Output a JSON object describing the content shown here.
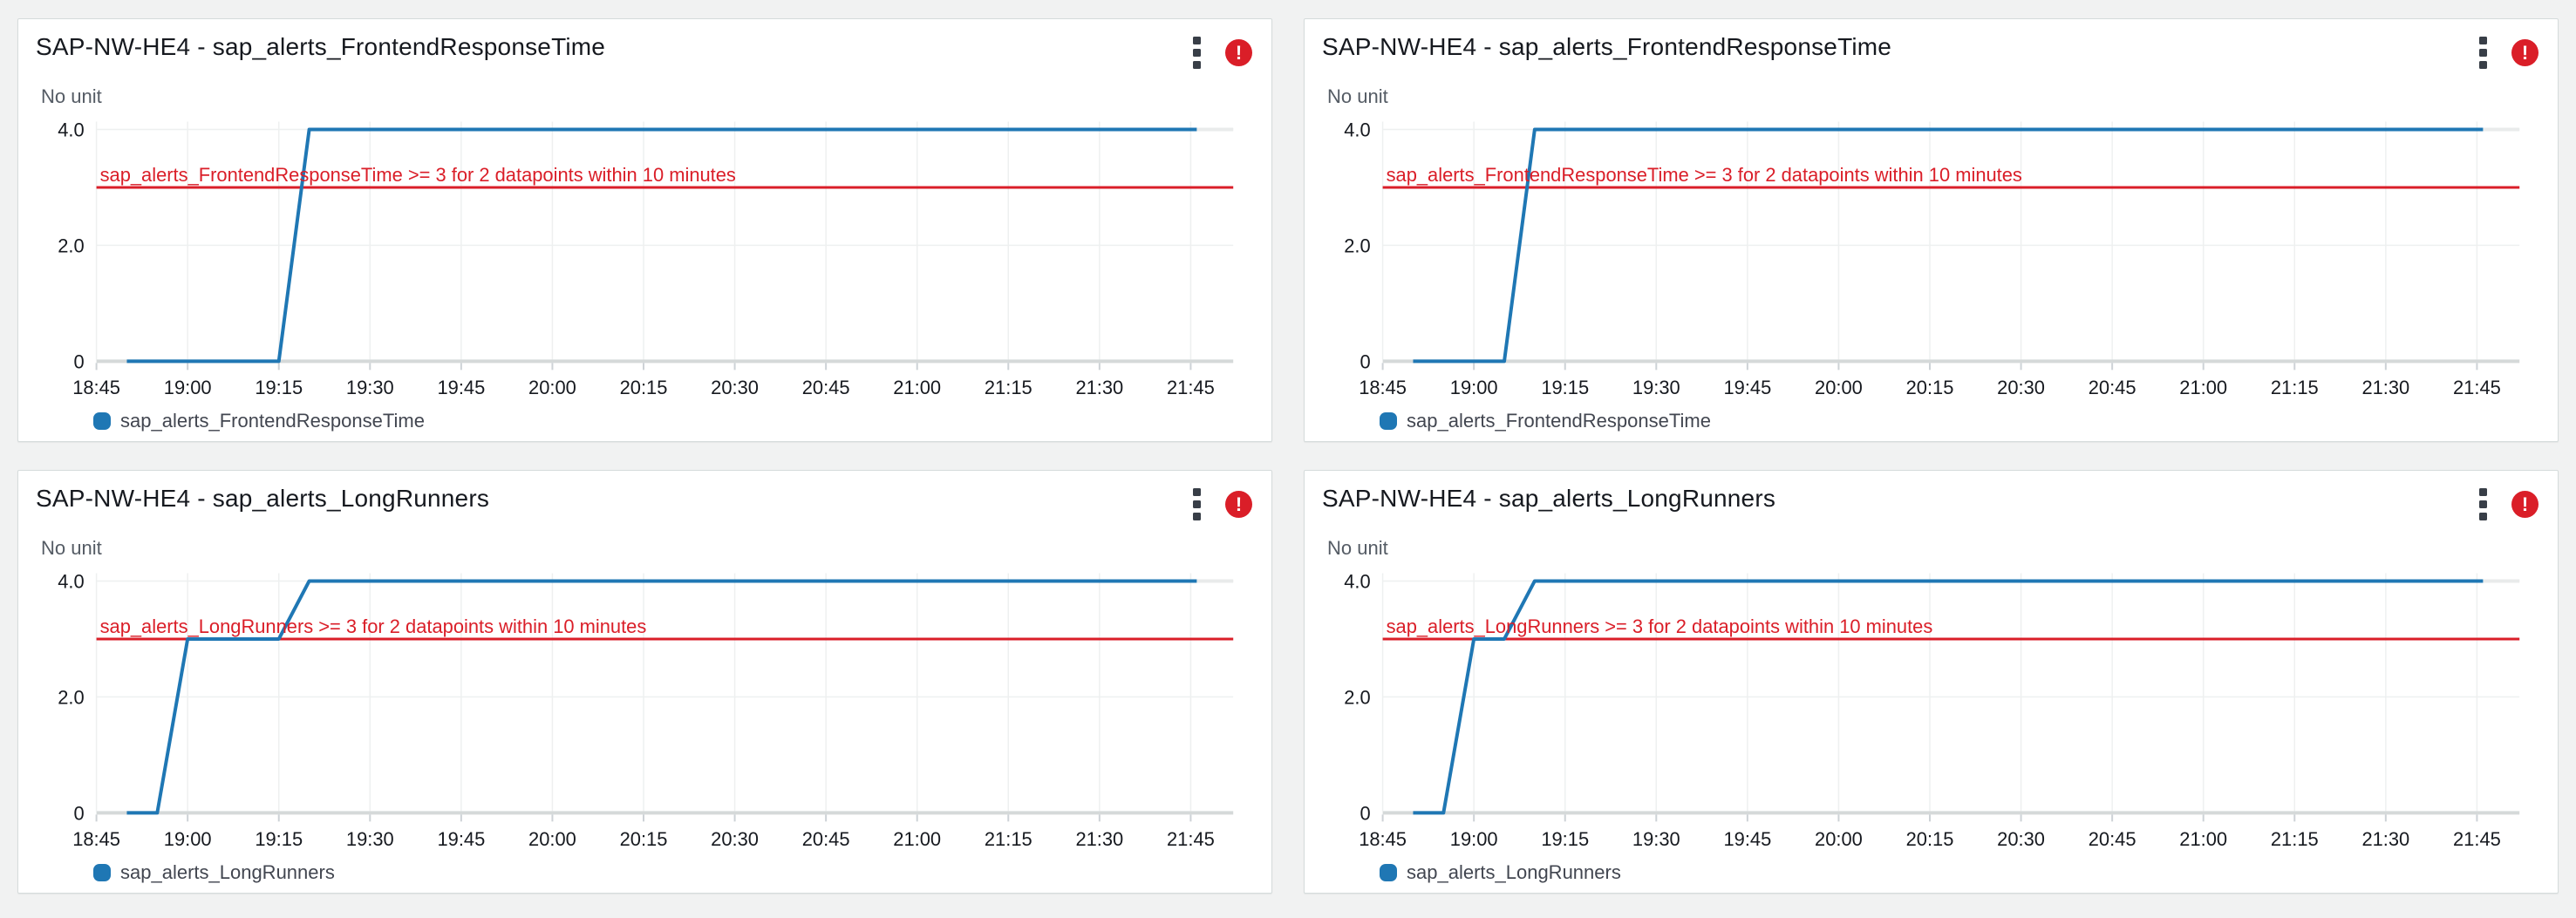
{
  "colors": {
    "page_background": "#f1f2f2",
    "widget_background": "#ffffff",
    "widget_border": "#d5dbdb",
    "series_blue": "#1f77b4",
    "threshold_red": "#da1e28",
    "alarm_badge_red": "#da1e28",
    "axis_baseline": "#d5d9d9",
    "gridline": "#eef0f0",
    "tick_mark": "#cdd2d6",
    "no_data_tail": "#e9ebeb",
    "title_text": "#16191f",
    "axis_text": "#16191f",
    "muted_text": "#545b64"
  },
  "widgets": [
    {
      "title": "SAP-NW-HE4 - sap_alerts_FrontendResponseTime",
      "unit_label": "No unit",
      "alarm_glyph": "!",
      "menu_icon": "kebab-menu",
      "alarm_icon": "alarm-in-alarm",
      "legend": {
        "label": "sap_alerts_FrontendResponseTime",
        "color": "#1f77b4"
      },
      "chart_data": {
        "type": "line",
        "title": "SAP-NW-HE4 - sap_alerts_FrontendResponseTime",
        "x_ticks": [
          "18:45",
          "19:00",
          "19:15",
          "19:30",
          "19:45",
          "20:00",
          "20:15",
          "20:30",
          "20:45",
          "21:00",
          "21:15",
          "21:30",
          "21:45"
        ],
        "x_range": [
          "18:45",
          "21:52"
        ],
        "y_ticks": [
          [
            0,
            "0"
          ],
          [
            2,
            "2.0"
          ],
          [
            4,
            "4.0"
          ]
        ],
        "ylim": [
          0,
          4
        ],
        "grid": true,
        "legend_position": "bottom",
        "threshold": {
          "value": 3,
          "label": "sap_alerts_FrontendResponseTime >= 3 for 2 datapoints within 10 minutes"
        },
        "series": [
          {
            "name": "sap_alerts_FrontendResponseTime",
            "color": "#1f77b4",
            "points": [
              [
                "18:50",
                0
              ],
              [
                "19:15",
                0
              ],
              [
                "19:20",
                4
              ],
              [
                "21:46",
                4
              ]
            ]
          }
        ],
        "no_data_tail": {
          "points": [
            [
              "21:46",
              4
            ],
            [
              "21:52",
              4
            ]
          ]
        }
      }
    },
    {
      "title": "SAP-NW-HE4 - sap_alerts_FrontendResponseTime",
      "unit_label": "No unit",
      "alarm_glyph": "!",
      "menu_icon": "kebab-menu",
      "alarm_icon": "alarm-in-alarm",
      "legend": {
        "label": "sap_alerts_FrontendResponseTime",
        "color": "#1f77b4"
      },
      "chart_data": {
        "type": "line",
        "title": "SAP-NW-HE4 - sap_alerts_FrontendResponseTime",
        "x_ticks": [
          "18:45",
          "19:00",
          "19:15",
          "19:30",
          "19:45",
          "20:00",
          "20:15",
          "20:30",
          "20:45",
          "21:00",
          "21:15",
          "21:30",
          "21:45"
        ],
        "x_range": [
          "18:45",
          "21:52"
        ],
        "y_ticks": [
          [
            0,
            "0"
          ],
          [
            2,
            "2.0"
          ],
          [
            4,
            "4.0"
          ]
        ],
        "ylim": [
          0,
          4
        ],
        "grid": true,
        "legend_position": "bottom",
        "threshold": {
          "value": 3,
          "label": "sap_alerts_FrontendResponseTime >= 3 for 2 datapoints within 10 minutes"
        },
        "series": [
          {
            "name": "sap_alerts_FrontendResponseTime",
            "color": "#1f77b4",
            "points": [
              [
                "18:50",
                0
              ],
              [
                "19:05",
                0
              ],
              [
                "19:10",
                4
              ],
              [
                "21:46",
                4
              ]
            ]
          }
        ],
        "no_data_tail": {
          "points": [
            [
              "21:46",
              4
            ],
            [
              "21:52",
              4
            ]
          ]
        }
      }
    },
    {
      "title": "SAP-NW-HE4 - sap_alerts_LongRunners",
      "unit_label": "No unit",
      "alarm_glyph": "!",
      "menu_icon": "kebab-menu",
      "alarm_icon": "alarm-in-alarm",
      "legend": {
        "label": "sap_alerts_LongRunners",
        "color": "#1f77b4"
      },
      "chart_data": {
        "type": "line",
        "title": "SAP-NW-HE4 - sap_alerts_LongRunners",
        "x_ticks": [
          "18:45",
          "19:00",
          "19:15",
          "19:30",
          "19:45",
          "20:00",
          "20:15",
          "20:30",
          "20:45",
          "21:00",
          "21:15",
          "21:30",
          "21:45"
        ],
        "x_range": [
          "18:45",
          "21:52"
        ],
        "y_ticks": [
          [
            0,
            "0"
          ],
          [
            2,
            "2.0"
          ],
          [
            4,
            "4.0"
          ]
        ],
        "ylim": [
          0,
          4
        ],
        "grid": true,
        "legend_position": "bottom",
        "threshold": {
          "value": 3,
          "label": "sap_alerts_LongRunners >= 3 for 2 datapoints within 10 minutes"
        },
        "series": [
          {
            "name": "sap_alerts_LongRunners",
            "color": "#1f77b4",
            "points": [
              [
                "18:50",
                0
              ],
              [
                "18:55",
                0
              ],
              [
                "19:00",
                3
              ],
              [
                "19:15",
                3
              ],
              [
                "19:20",
                4
              ],
              [
                "21:46",
                4
              ]
            ]
          }
        ],
        "no_data_tail": {
          "points": [
            [
              "21:46",
              4
            ],
            [
              "21:52",
              4
            ]
          ]
        }
      }
    },
    {
      "title": "SAP-NW-HE4 - sap_alerts_LongRunners",
      "unit_label": "No unit",
      "alarm_glyph": "!",
      "menu_icon": "kebab-menu",
      "alarm_icon": "alarm-in-alarm",
      "legend": {
        "label": "sap_alerts_LongRunners",
        "color": "#1f77b4"
      },
      "chart_data": {
        "type": "line",
        "title": "SAP-NW-HE4 - sap_alerts_LongRunners",
        "x_ticks": [
          "18:45",
          "19:00",
          "19:15",
          "19:30",
          "19:45",
          "20:00",
          "20:15",
          "20:30",
          "20:45",
          "21:00",
          "21:15",
          "21:30",
          "21:45"
        ],
        "x_range": [
          "18:45",
          "21:52"
        ],
        "y_ticks": [
          [
            0,
            "0"
          ],
          [
            2,
            "2.0"
          ],
          [
            4,
            "4.0"
          ]
        ],
        "ylim": [
          0,
          4
        ],
        "grid": true,
        "legend_position": "bottom",
        "threshold": {
          "value": 3,
          "label": "sap_alerts_LongRunners >= 3 for 2 datapoints within 10 minutes"
        },
        "series": [
          {
            "name": "sap_alerts_LongRunners",
            "color": "#1f77b4",
            "points": [
              [
                "18:50",
                0
              ],
              [
                "18:55",
                0
              ],
              [
                "19:00",
                3
              ],
              [
                "19:05",
                3
              ],
              [
                "19:10",
                4
              ],
              [
                "21:46",
                4
              ]
            ]
          }
        ],
        "no_data_tail": {
          "points": [
            [
              "21:46",
              4
            ],
            [
              "21:52",
              4
            ]
          ]
        }
      }
    }
  ]
}
